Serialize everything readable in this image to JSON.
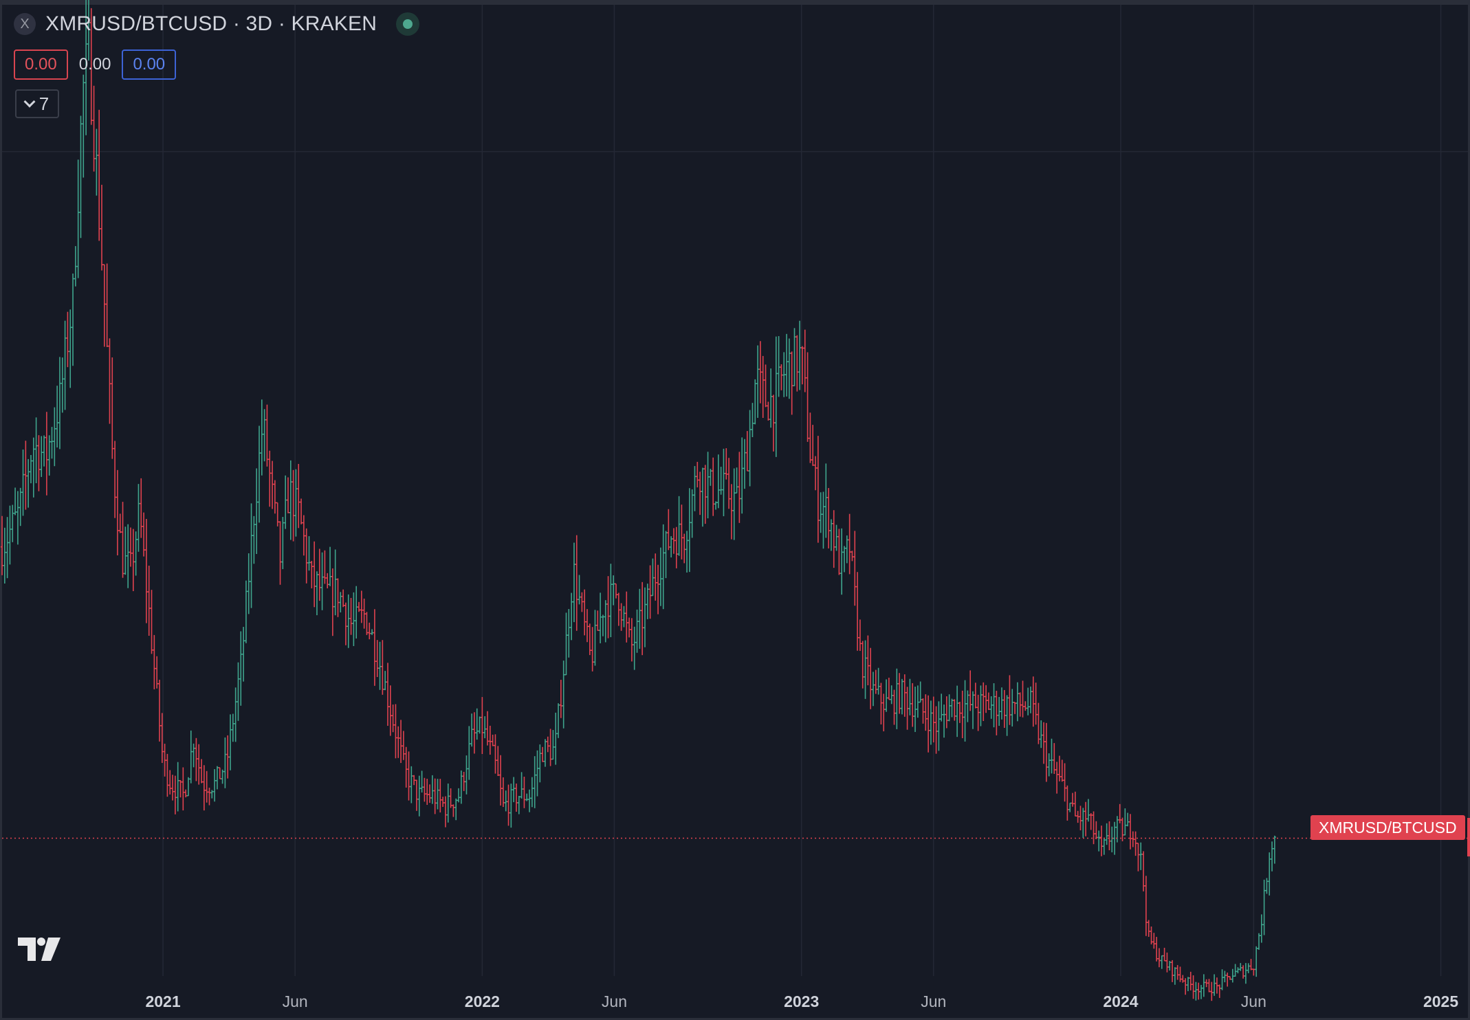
{
  "legend": {
    "close_icon": "x-icon",
    "close_glyph": "X",
    "title": "XMRUSD/BTCUSD · 3D · KRAKEN",
    "status_icon": "market-open-dot-icon",
    "open_value": "0.00",
    "mid_value": "0.00",
    "indicator_value": "0.00",
    "collapse_icon": "chevron-down-icon",
    "collapse_count": "7"
  },
  "price_label": {
    "text": "XMRUSD/BTCUSD",
    "color": "#e0424f"
  },
  "logo": "tradingview-logo-icon",
  "colors": {
    "background": "#161a25",
    "up": "#3fa58d",
    "down": "#e0424f",
    "grid": "#242835"
  },
  "chart_data": {
    "type": "ohlc",
    "title": "XMRUSD/BTCUSD · 3D · KRAKEN",
    "x_axis": {
      "type": "date",
      "range": [
        "2020-07-01",
        "2025-02-01"
      ],
      "ticks": [
        {
          "label": "2021",
          "date": "2021-01-01",
          "bold": true
        },
        {
          "label": "Jun",
          "date": "2021-06-01",
          "bold": false
        },
        {
          "label": "2022",
          "date": "2022-01-01",
          "bold": true
        },
        {
          "label": "Jun",
          "date": "2022-06-01",
          "bold": false
        },
        {
          "label": "2023",
          "date": "2023-01-01",
          "bold": true
        },
        {
          "label": "Jun",
          "date": "2023-06-01",
          "bold": false
        },
        {
          "label": "2024",
          "date": "2024-01-01",
          "bold": true
        },
        {
          "label": "Jun",
          "date": "2024-06-01",
          "bold": false
        },
        {
          "label": "2025",
          "date": "2025-01-01",
          "bold": true
        }
      ]
    },
    "y_axis": {
      "range": [
        0.0017,
        0.0103
      ],
      "gridline": 0.009
    },
    "current_price": 0.00292,
    "series": [
      {
        "values": [
          [
            "2020-07-01",
            0.0055
          ],
          [
            "2020-07-20",
            0.0058
          ],
          [
            "2020-08-05",
            0.0064
          ],
          [
            "2020-08-20",
            0.0063
          ],
          [
            "2020-09-05",
            0.0068
          ],
          [
            "2020-09-20",
            0.0077
          ],
          [
            "2020-10-01",
            0.0095
          ],
          [
            "2020-10-08",
            0.0099
          ],
          [
            "2020-10-15",
            0.0091
          ],
          [
            "2020-10-25",
            0.0078
          ],
          [
            "2020-11-05",
            0.0062
          ],
          [
            "2020-11-15",
            0.0054
          ],
          [
            "2020-11-25",
            0.0053
          ],
          [
            "2020-12-05",
            0.0058
          ],
          [
            "2020-12-15",
            0.005
          ],
          [
            "2021-01-01",
            0.0036
          ],
          [
            "2021-01-10",
            0.0034
          ],
          [
            "2021-01-25",
            0.0033
          ],
          [
            "2021-02-05",
            0.0038
          ],
          [
            "2021-02-15",
            0.0034
          ],
          [
            "2021-03-01",
            0.0034
          ],
          [
            "2021-03-15",
            0.0036
          ],
          [
            "2021-04-01",
            0.0045
          ],
          [
            "2021-04-15",
            0.0058
          ],
          [
            "2021-04-25",
            0.0066
          ],
          [
            "2021-05-05",
            0.006
          ],
          [
            "2021-05-15",
            0.0054
          ],
          [
            "2021-05-25",
            0.006
          ],
          [
            "2021-06-05",
            0.0058
          ],
          [
            "2021-06-20",
            0.0052
          ],
          [
            "2021-07-05",
            0.0051
          ],
          [
            "2021-07-20",
            0.0051
          ],
          [
            "2021-08-05",
            0.0048
          ],
          [
            "2021-08-20",
            0.0049
          ],
          [
            "2021-09-05",
            0.0045
          ],
          [
            "2021-09-20",
            0.004
          ],
          [
            "2021-10-05",
            0.0035
          ],
          [
            "2021-10-20",
            0.0033
          ],
          [
            "2021-11-05",
            0.0033
          ],
          [
            "2021-11-20",
            0.0032
          ],
          [
            "2021-12-05",
            0.0033
          ],
          [
            "2021-12-20",
            0.0038
          ],
          [
            "2022-01-01",
            0.0039
          ],
          [
            "2022-01-15",
            0.0036
          ],
          [
            "2022-01-25",
            0.0032
          ],
          [
            "2022-02-10",
            0.0033
          ],
          [
            "2022-02-25",
            0.0033
          ],
          [
            "2022-03-10",
            0.0037
          ],
          [
            "2022-03-25",
            0.0037
          ],
          [
            "2022-04-05",
            0.0045
          ],
          [
            "2022-04-15",
            0.0053
          ],
          [
            "2022-04-25",
            0.0049
          ],
          [
            "2022-05-05",
            0.0045
          ],
          [
            "2022-05-20",
            0.005
          ],
          [
            "2022-06-05",
            0.0051
          ],
          [
            "2022-06-20",
            0.0046
          ],
          [
            "2022-07-05",
            0.0049
          ],
          [
            "2022-07-20",
            0.0053
          ],
          [
            "2022-08-05",
            0.0056
          ],
          [
            "2022-08-20",
            0.0056
          ],
          [
            "2022-09-05",
            0.0062
          ],
          [
            "2022-09-20",
            0.006
          ],
          [
            "2022-10-05",
            0.006
          ],
          [
            "2022-10-20",
            0.0059
          ],
          [
            "2022-11-01",
            0.0064
          ],
          [
            "2022-11-10",
            0.007
          ],
          [
            "2022-11-20",
            0.0068
          ],
          [
            "2022-12-01",
            0.0068
          ],
          [
            "2022-12-15",
            0.0071
          ],
          [
            "2023-01-01",
            0.0072
          ],
          [
            "2023-01-10",
            0.0064
          ],
          [
            "2023-01-20",
            0.0059
          ],
          [
            "2023-02-01",
            0.0058
          ],
          [
            "2023-02-15",
            0.0053
          ],
          [
            "2023-02-25",
            0.0055
          ],
          [
            "2023-03-10",
            0.0045
          ],
          [
            "2023-03-25",
            0.0042
          ],
          [
            "2023-04-10",
            0.0041
          ],
          [
            "2023-04-25",
            0.0042
          ],
          [
            "2023-05-10",
            0.0041
          ],
          [
            "2023-05-25",
            0.004
          ],
          [
            "2023-06-05",
            0.0039
          ],
          [
            "2023-06-20",
            0.0041
          ],
          [
            "2023-07-05",
            0.0041
          ],
          [
            "2023-07-20",
            0.0041
          ],
          [
            "2023-08-05",
            0.0041
          ],
          [
            "2023-08-20",
            0.0041
          ],
          [
            "2023-09-05",
            0.0041
          ],
          [
            "2023-09-20",
            0.0041
          ],
          [
            "2023-10-01",
            0.0038
          ],
          [
            "2023-10-10",
            0.0036
          ],
          [
            "2023-10-25",
            0.0034
          ],
          [
            "2023-11-10",
            0.0031
          ],
          [
            "2023-11-25",
            0.0031
          ],
          [
            "2023-12-10",
            0.0028
          ],
          [
            "2023-12-25",
            0.003
          ],
          [
            "2024-01-05",
            0.003
          ],
          [
            "2024-01-15",
            0.003
          ],
          [
            "2024-01-25",
            0.0027
          ],
          [
            "2024-02-01",
            0.00205
          ],
          [
            "2024-02-15",
            0.00185
          ],
          [
            "2024-03-01",
            0.00175
          ],
          [
            "2024-03-15",
            0.00165
          ],
          [
            "2024-03-25",
            0.0016
          ],
          [
            "2024-04-05",
            0.0016
          ],
          [
            "2024-04-20",
            0.0016
          ],
          [
            "2024-05-05",
            0.0017
          ],
          [
            "2024-05-20",
            0.00175
          ],
          [
            "2024-06-01",
            0.0018
          ],
          [
            "2024-06-10",
            0.0022
          ],
          [
            "2024-06-20",
            0.00285
          ],
          [
            "2024-06-25",
            0.00292
          ]
        ]
      }
    ]
  }
}
